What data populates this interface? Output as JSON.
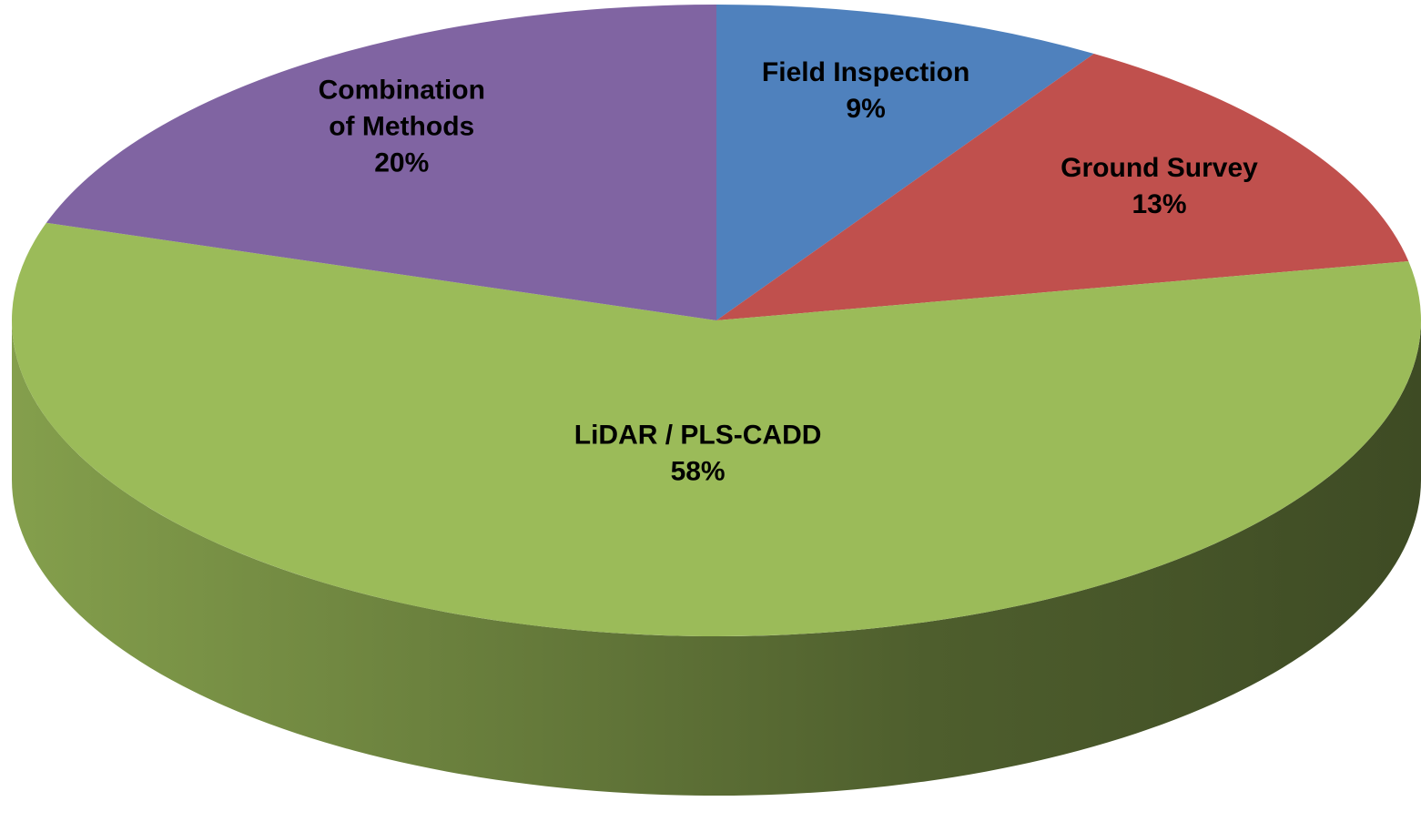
{
  "chart_data": {
    "type": "pie",
    "categories": [
      "Field Inspection",
      "Ground Survey",
      "LiDAR / PLS-CADD",
      "Combination of Methods"
    ],
    "values": [
      9,
      13,
      58,
      20
    ],
    "value_labels": [
      "9%",
      "13%",
      "58%",
      "20%"
    ],
    "colors": [
      "#4f81bd",
      "#c0504d",
      "#9bbb59",
      "#8064a2"
    ]
  }
}
